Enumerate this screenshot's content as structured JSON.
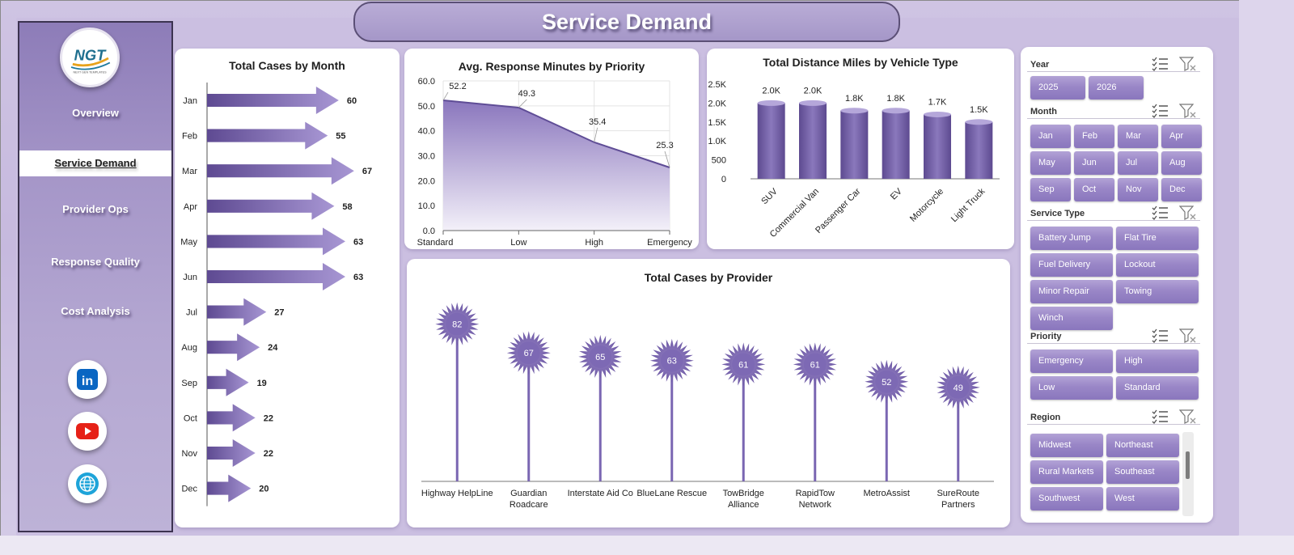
{
  "header": {
    "title": "Service Demand"
  },
  "sidebar": {
    "logo_text": "NGT",
    "logo_subtext": "NEXT GEN TEMPLATES",
    "items": [
      {
        "label": "Overview",
        "active": false
      },
      {
        "label": "Service Demand",
        "active": true
      },
      {
        "label": "Provider Ops",
        "active": false
      },
      {
        "label": "Response Quality",
        "active": false
      },
      {
        "label": "Cost Analysis",
        "active": false
      }
    ],
    "social": [
      {
        "icon": "linkedin-icon",
        "text": "in"
      },
      {
        "icon": "youtube-icon"
      },
      {
        "icon": "globe-icon"
      }
    ]
  },
  "colors": {
    "accent": "#7b68b0",
    "accent_dark": "#5f4d96",
    "accent_light": "#b3a6d6",
    "sidebar": "#9b8bc2"
  },
  "chart_data": [
    {
      "id": "cases_by_month",
      "type": "bar",
      "orientation": "horizontal",
      "title": "Total Cases by Month",
      "categories": [
        "Jan",
        "Feb",
        "Mar",
        "Apr",
        "May",
        "Jun",
        "Jul",
        "Aug",
        "Sep",
        "Oct",
        "Nov",
        "Dec"
      ],
      "values": [
        60,
        55,
        67,
        58,
        63,
        63,
        27,
        24,
        19,
        22,
        22,
        20
      ],
      "xlim": [
        0,
        70
      ]
    },
    {
      "id": "response_by_priority",
      "type": "area",
      "title": "Avg. Response Minutes by Priority",
      "categories": [
        "Standard",
        "Low",
        "High",
        "Emergency"
      ],
      "values": [
        52.2,
        49.3,
        35.4,
        25.3
      ],
      "ylim": [
        0,
        60
      ],
      "yticks": [
        "0.0",
        "10.0",
        "20.0",
        "30.0",
        "40.0",
        "50.0",
        "60.0"
      ],
      "data_labels": [
        "52.2",
        "49.3",
        "35.4",
        "25.3"
      ],
      "grid": true
    },
    {
      "id": "distance_by_vehicle",
      "type": "bar",
      "title": "Total Distance Miles by Vehicle Type",
      "categories": [
        "SUV",
        "Commercial Van",
        "Passenger Car",
        "EV",
        "Motorcycle",
        "Light Truck"
      ],
      "values": [
        2000,
        2000,
        1800,
        1800,
        1700,
        1500
      ],
      "data_labels": [
        "2.0K",
        "2.0K",
        "1.8K",
        "1.8K",
        "1.7K",
        "1.5K"
      ],
      "ylim": [
        0,
        2500
      ],
      "yticks": [
        "0",
        "500",
        "1.0K",
        "1.5K",
        "2.0K",
        "2.5K"
      ]
    },
    {
      "id": "cases_by_provider",
      "type": "bar",
      "style": "lollipop",
      "title": "Total Cases by Provider",
      "categories": [
        [
          "Highway HelpLine"
        ],
        [
          "Guardian",
          "Roadcare"
        ],
        [
          "Interstate Aid Co"
        ],
        [
          "BlueLane Rescue"
        ],
        [
          "TowBridge",
          "Alliance"
        ],
        [
          "RapidTow",
          "Network"
        ],
        [
          "MetroAssist"
        ],
        [
          "SureRoute",
          "Partners"
        ]
      ],
      "values": [
        82,
        67,
        65,
        63,
        61,
        61,
        52,
        49
      ],
      "ylim": [
        0,
        100
      ]
    }
  ],
  "slicers": [
    {
      "id": "year",
      "label": "Year",
      "items": [
        "2025",
        "2026"
      ]
    },
    {
      "id": "month",
      "label": "Month",
      "items": [
        "Jan",
        "Feb",
        "Mar",
        "Apr",
        "May",
        "Jun",
        "Jul",
        "Aug",
        "Sep",
        "Oct",
        "Nov",
        "Dec"
      ]
    },
    {
      "id": "service_type",
      "label": "Service Type",
      "items": [
        "Battery Jump",
        "Flat Tire",
        "Fuel Delivery",
        "Lockout",
        "Minor Repair",
        "Towing",
        "Winch"
      ]
    },
    {
      "id": "priority",
      "label": "Priority",
      "items": [
        "Emergency",
        "High",
        "Low",
        "Standard"
      ]
    },
    {
      "id": "region",
      "label": "Region",
      "items": [
        "Midwest",
        "Northeast",
        "Rural Markets",
        "Southeast",
        "Southwest",
        "West"
      ]
    }
  ]
}
